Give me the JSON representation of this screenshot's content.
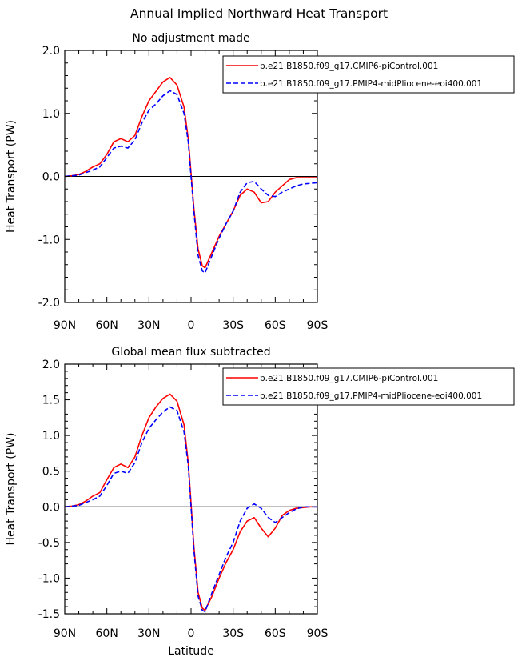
{
  "title": "Annual Implied Northward Heat Transport",
  "chart_data": [
    {
      "type": "line",
      "title": "No adjustment made",
      "xlabel": "",
      "ylabel": "Heat Transport (PW)",
      "xlim": [
        90,
        -90
      ],
      "ylim": [
        -2.0,
        2.0
      ],
      "xticks": [
        90,
        60,
        30,
        0,
        -30,
        -60,
        -90
      ],
      "xtick_labels": [
        "90N",
        "60N",
        "30N",
        "0",
        "30S",
        "60S",
        "90S"
      ],
      "yticks": [
        -2.0,
        -1.0,
        0.0,
        1.0,
        2.0
      ],
      "ytick_labels": [
        "-2.0",
        "-1.0",
        "0.0",
        "1.0",
        "2.0"
      ],
      "legend_position": "top-right",
      "series": [
        {
          "name": "b.e21.B1850.f09_g17.CMIP6-piControl.001",
          "color": "#ff0000",
          "dash": "solid",
          "x": [
            90,
            85,
            80,
            75,
            70,
            65,
            60,
            55,
            50,
            45,
            40,
            35,
            30,
            25,
            20,
            15,
            10,
            5,
            2,
            0,
            -2,
            -5,
            -8,
            -10,
            -15,
            -20,
            -25,
            -30,
            -35,
            -40,
            -45,
            -50,
            -55,
            -60,
            -65,
            -70,
            -75,
            -80,
            -85,
            -90
          ],
          "y": [
            0.0,
            0.01,
            0.03,
            0.08,
            0.15,
            0.2,
            0.35,
            0.55,
            0.6,
            0.55,
            0.65,
            0.95,
            1.2,
            1.35,
            1.5,
            1.57,
            1.45,
            1.1,
            0.6,
            0.05,
            -0.5,
            -1.15,
            -1.42,
            -1.45,
            -1.2,
            -0.95,
            -0.75,
            -0.55,
            -0.3,
            -0.2,
            -0.25,
            -0.42,
            -0.4,
            -0.25,
            -0.15,
            -0.05,
            -0.02,
            -0.02,
            -0.02,
            -0.02
          ]
        },
        {
          "name": "b.e21.B1850.f09_g17.PMIP4-midPliocene-eoi400.001",
          "color": "#0000ff",
          "dash": "dashed",
          "x": [
            90,
            85,
            80,
            75,
            70,
            65,
            60,
            55,
            50,
            45,
            40,
            35,
            30,
            25,
            20,
            15,
            10,
            5,
            2,
            0,
            -2,
            -5,
            -8,
            -10,
            -15,
            -20,
            -25,
            -30,
            -35,
            -40,
            -45,
            -50,
            -55,
            -60,
            -65,
            -70,
            -75,
            -80,
            -85,
            -90
          ],
          "y": [
            0.0,
            0.01,
            0.02,
            0.06,
            0.1,
            0.15,
            0.3,
            0.45,
            0.48,
            0.45,
            0.58,
            0.85,
            1.05,
            1.15,
            1.28,
            1.36,
            1.3,
            1.0,
            0.55,
            0.0,
            -0.55,
            -1.25,
            -1.5,
            -1.53,
            -1.25,
            -0.98,
            -0.75,
            -0.55,
            -0.25,
            -0.1,
            -0.08,
            -0.2,
            -0.3,
            -0.32,
            -0.25,
            -0.2,
            -0.15,
            -0.12,
            -0.11,
            -0.1
          ]
        }
      ]
    },
    {
      "type": "line",
      "title": "Global mean flux subtracted",
      "xlabel": "Latitude",
      "ylabel": "Heat Transport (PW)",
      "xlim": [
        90,
        -90
      ],
      "ylim": [
        -1.5,
        2.0
      ],
      "xticks": [
        90,
        60,
        30,
        0,
        -30,
        -60,
        -90
      ],
      "xtick_labels": [
        "90N",
        "60N",
        "30N",
        "0",
        "30S",
        "60S",
        "90S"
      ],
      "yticks": [
        -1.5,
        -1.0,
        -0.5,
        0.0,
        0.5,
        1.0,
        1.5,
        2.0
      ],
      "ytick_labels": [
        "-1.5",
        "-1.0",
        "-0.5",
        "0.0",
        "0.5",
        "1.0",
        "1.5",
        "2.0"
      ],
      "legend_position": "top-right",
      "series": [
        {
          "name": "b.e21.B1850.f09_g17.CMIP6-piControl.001",
          "color": "#ff0000",
          "dash": "solid",
          "x": [
            90,
            85,
            80,
            75,
            70,
            65,
            60,
            55,
            50,
            45,
            40,
            35,
            30,
            25,
            20,
            15,
            10,
            5,
            2,
            0,
            -2,
            -5,
            -8,
            -10,
            -15,
            -20,
            -25,
            -30,
            -35,
            -40,
            -45,
            -50,
            -55,
            -60,
            -65,
            -70,
            -75,
            -80,
            -85,
            -90
          ],
          "y": [
            0.0,
            0.01,
            0.03,
            0.08,
            0.15,
            0.2,
            0.38,
            0.55,
            0.6,
            0.55,
            0.7,
            1.0,
            1.25,
            1.4,
            1.52,
            1.58,
            1.48,
            1.15,
            0.62,
            0.05,
            -0.55,
            -1.2,
            -1.42,
            -1.45,
            -1.25,
            -1.0,
            -0.78,
            -0.6,
            -0.35,
            -0.2,
            -0.15,
            -0.3,
            -0.42,
            -0.3,
            -0.12,
            -0.05,
            -0.02,
            -0.01,
            0.0,
            0.0
          ]
        },
        {
          "name": "b.e21.B1850.f09_g17.PMIP4-midPliocene-eoi400.001",
          "color": "#0000ff",
          "dash": "dashed",
          "x": [
            90,
            85,
            80,
            75,
            70,
            65,
            60,
            55,
            50,
            45,
            40,
            35,
            30,
            25,
            20,
            15,
            10,
            5,
            2,
            0,
            -2,
            -5,
            -8,
            -10,
            -15,
            -20,
            -25,
            -30,
            -35,
            -40,
            -45,
            -50,
            -55,
            -60,
            -65,
            -70,
            -75,
            -80,
            -85,
            -90
          ],
          "y": [
            0.0,
            0.01,
            0.02,
            0.06,
            0.1,
            0.15,
            0.3,
            0.47,
            0.5,
            0.47,
            0.62,
            0.9,
            1.1,
            1.22,
            1.33,
            1.4,
            1.35,
            1.05,
            0.58,
            0.0,
            -0.6,
            -1.25,
            -1.45,
            -1.47,
            -1.2,
            -0.95,
            -0.7,
            -0.5,
            -0.2,
            -0.02,
            0.04,
            -0.02,
            -0.15,
            -0.22,
            -0.15,
            -0.08,
            -0.03,
            0.0,
            0.0,
            0.0
          ]
        }
      ]
    }
  ]
}
